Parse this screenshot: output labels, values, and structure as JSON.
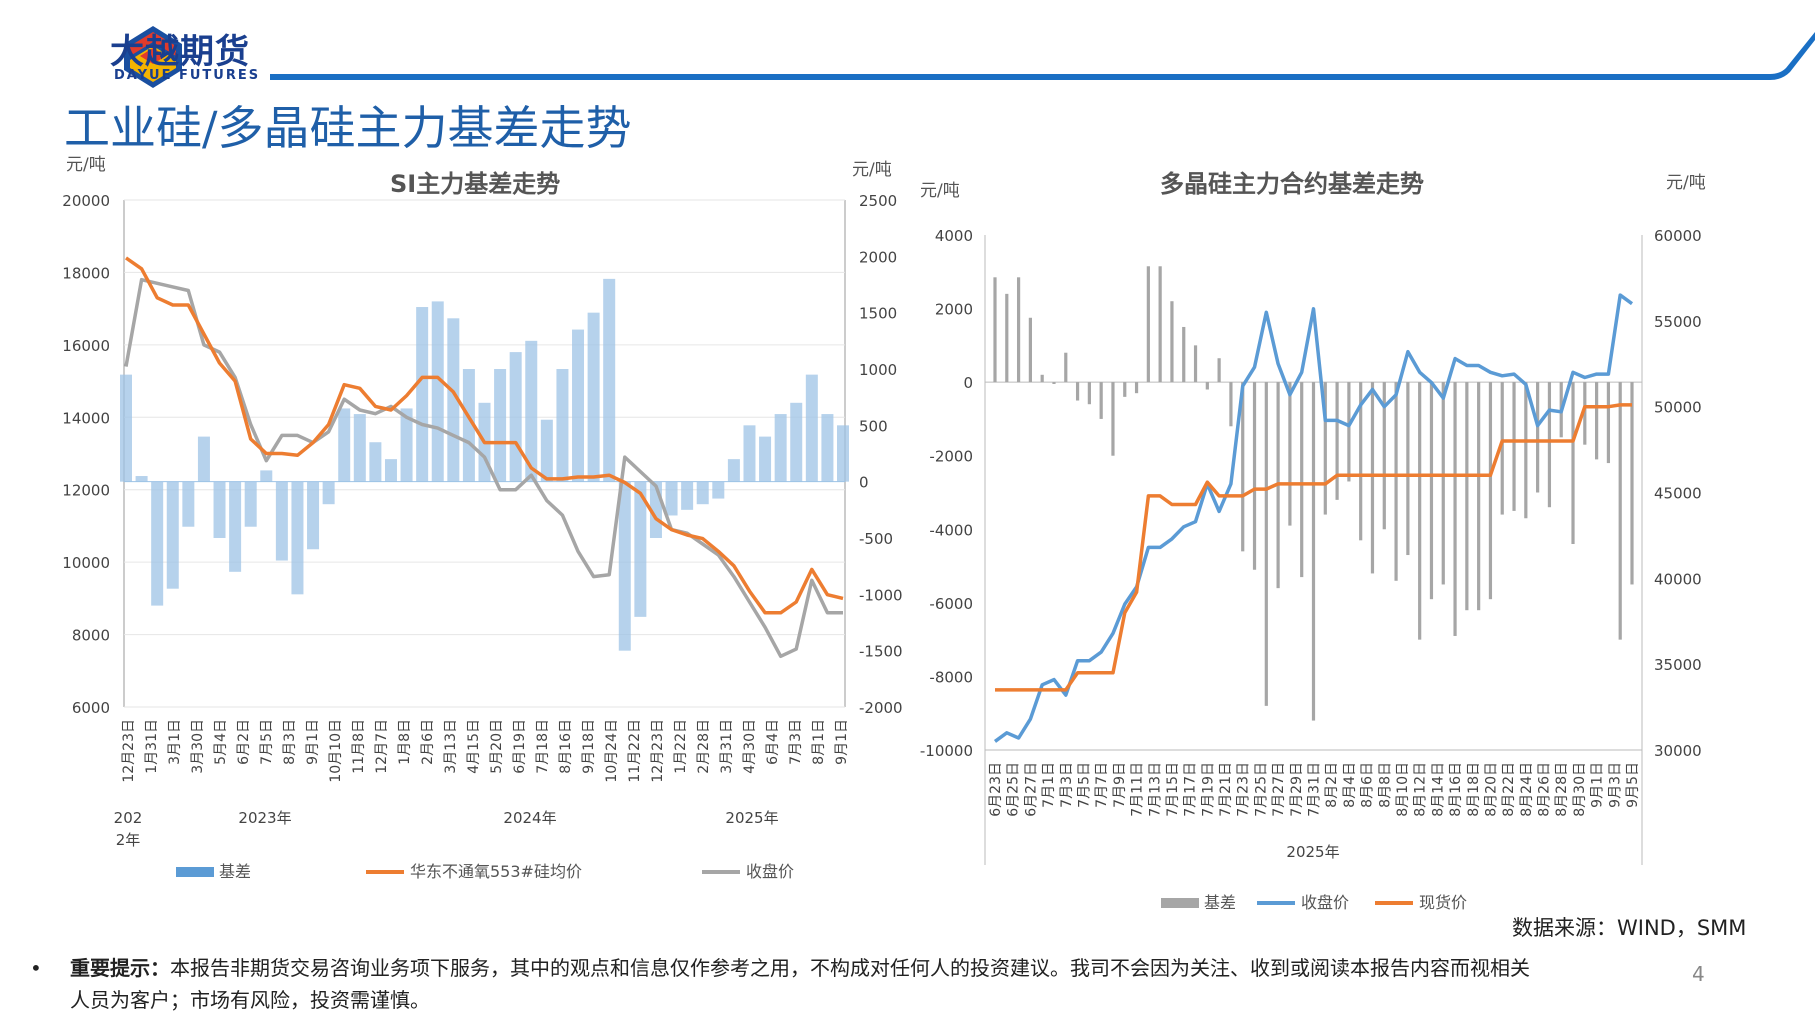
{
  "header": {
    "brand_cn": "大越期货",
    "brand_en": "DAYUE FUTURES",
    "page_title": "工业硅/多晶硅主力基差走势"
  },
  "colors": {
    "brand_blue": "#1a6fc4",
    "title_blue": "#1f5fa8",
    "basis_light_blue": "#9dc3e6",
    "orange": "#ed7d31",
    "gray": "#a6a6a6",
    "blue_line": "#5b9bd5"
  },
  "chart_data": [
    {
      "type": "line",
      "title": "SI主力基差走势",
      "left_unit": "元/吨",
      "right_unit": "元/吨",
      "ylim_left": [
        6000,
        20000
      ],
      "yticks_left": [
        "20000",
        "18000",
        "16000",
        "14000",
        "12000",
        "10000",
        "8000",
        "6000"
      ],
      "ylim_right": [
        -2000,
        2500
      ],
      "yticks_right": [
        "2500",
        "2000",
        "1500",
        "1000",
        "500",
        "0",
        "-500",
        "-1000",
        "-1500",
        "-2000"
      ],
      "x_tick_labels": [
        "12月23日",
        "1月31日",
        "3月1日",
        "3月30日",
        "5月4日",
        "6月2日",
        "7月5日",
        "8月3日",
        "9月1日",
        "10月10日",
        "11月8日",
        "12月7日",
        "1月8日",
        "2月6日",
        "3月13日",
        "4月15日",
        "5月20日",
        "6月19日",
        "7月18日",
        "8月16日",
        "9月18日",
        "10月24日",
        "11月22日",
        "12月23日",
        "1月22日",
        "2月28日",
        "3月31日",
        "4月30日",
        "6月4日",
        "7月3日",
        "8月1日",
        "9月1日"
      ],
      "year_labels": [
        "202\n2年",
        "2023年",
        "2024年",
        "2025年"
      ],
      "legend": [
        "基差",
        "华东不通氧553#硅均价",
        "收盘价"
      ],
      "series": [
        {
          "name": "华东不通氧553#硅均价",
          "axis": "left",
          "values": [
            18400,
            18100,
            17300,
            17100,
            17100,
            16300,
            15500,
            15000,
            13400,
            13000,
            13000,
            12950,
            13300,
            13800,
            14900,
            14800,
            14300,
            14200,
            14600,
            15100,
            15100,
            14700,
            14000,
            13300,
            13300,
            13300,
            12600,
            12300,
            12300,
            12350,
            12350,
            12400,
            12200,
            11900,
            11200,
            10900,
            10750,
            10650,
            10300,
            9900,
            9200,
            8600,
            8600,
            8900,
            9800,
            9100,
            9000
          ]
        },
        {
          "name": "收盘价",
          "axis": "left",
          "values": [
            15400,
            17800,
            17700,
            17600,
            17500,
            16000,
            15800,
            15100,
            13800,
            12800,
            13500,
            13500,
            13300,
            13600,
            14500,
            14200,
            14100,
            14300,
            14000,
            13800,
            13700,
            13500,
            13300,
            12900,
            12000,
            12000,
            12400,
            11700,
            11300,
            10300,
            9600,
            9650,
            12900,
            12500,
            12100,
            10900,
            10800,
            10500,
            10200,
            9600,
            8900,
            8200,
            7400,
            7600,
            9500,
            8600,
            8600
          ]
        },
        {
          "name": "基差",
          "axis": "right",
          "type": "bar",
          "values": [
            950,
            50,
            -1100,
            -950,
            -400,
            400,
            -500,
            -800,
            -400,
            100,
            -700,
            -1000,
            -600,
            -200,
            650,
            600,
            350,
            200,
            650,
            1550,
            1600,
            1450,
            1000,
            700,
            1000,
            1150,
            1250,
            550,
            1000,
            1350,
            1500,
            1800,
            -1500,
            -1200,
            -500,
            -300,
            -250,
            -200,
            -150,
            200,
            500,
            400,
            600,
            700,
            950,
            600,
            500
          ]
        }
      ]
    },
    {
      "type": "line",
      "title": "多晶硅主力合约基差走势",
      "left_unit": "元/吨",
      "right_unit": "元/吨",
      "ylim_left": [
        -10000,
        4000
      ],
      "yticks_left": [
        "4000",
        "2000",
        "0",
        "-2000",
        "-4000",
        "-6000",
        "-8000",
        "-10000"
      ],
      "ylim_right": [
        30000,
        60000
      ],
      "yticks_right": [
        "60000",
        "55000",
        "50000",
        "45000",
        "40000",
        "35000",
        "30000"
      ],
      "x_tick_labels": [
        "6月23日",
        "6月25日",
        "6月27日",
        "7月1日",
        "7月3日",
        "7月5日",
        "7月7日",
        "7月9日",
        "7月11日",
        "7月13日",
        "7月15日",
        "7月17日",
        "7月19日",
        "7月21日",
        "7月23日",
        "7月25日",
        "7月27日",
        "7月29日",
        "7月31日",
        "8月2日",
        "8月4日",
        "8月6日",
        "8月8日",
        "8月10日",
        "8月12日",
        "8月14日",
        "8月16日",
        "8月18日",
        "8月20日",
        "8月22日",
        "8月24日",
        "8月26日",
        "8月28日",
        "8月30日",
        "9月1日",
        "9月3日",
        "9月5日"
      ],
      "year_label": "2025年",
      "legend": [
        "基差",
        "收盘价",
        "现货价"
      ],
      "series": [
        {
          "name": "基差",
          "axis": "left",
          "type": "bar",
          "values": [
            2850,
            2400,
            2850,
            1750,
            200,
            -50,
            800,
            -500,
            -600,
            -1000,
            -2000,
            -400,
            -300,
            3150,
            3150,
            2200,
            1500,
            1000,
            -200,
            650,
            -1200,
            -4600,
            -5100,
            -8800,
            -5600,
            -3900,
            -5300,
            -9200,
            -3600,
            -3200,
            -2700,
            -4300,
            -5200,
            -4000,
            -5400,
            -4700,
            -7000,
            -5900,
            -5500,
            -6900,
            -6200,
            -6200,
            -5900,
            -3600,
            -3500,
            -3700,
            -3000,
            -3400,
            -1500,
            -4400,
            -1700,
            -2100,
            -2200,
            -7000,
            -5500
          ]
        },
        {
          "name": "收盘价",
          "axis": "right",
          "values": [
            30500,
            31000,
            30700,
            31800,
            33800,
            34100,
            33200,
            35200,
            35200,
            35700,
            36800,
            38500,
            39500,
            41800,
            41800,
            42300,
            43000,
            43300,
            45500,
            43900,
            45500,
            51200,
            52300,
            55500,
            52500,
            50700,
            52000,
            55700,
            49200,
            49200,
            48900,
            50100,
            51000,
            50000,
            50700,
            53200,
            52000,
            51400,
            50500,
            52800,
            52400,
            52400,
            52000,
            51800,
            51900,
            51300,
            48900,
            49800,
            49700,
            52000,
            51700,
            51900,
            51900,
            56500,
            56000
          ]
        },
        {
          "name": "现货价",
          "axis": "right",
          "values": [
            33500,
            33500,
            33500,
            33500,
            33500,
            33500,
            33500,
            34500,
            34500,
            34500,
            34500,
            38000,
            39200,
            44800,
            44800,
            44300,
            44300,
            44300,
            45600,
            44800,
            44800,
            44800,
            45200,
            45200,
            45500,
            45500,
            45500,
            45500,
            45500,
            46000,
            46000,
            46000,
            46000,
            46000,
            46000,
            46000,
            46000,
            46000,
            46000,
            46000,
            46000,
            46000,
            46000,
            48000,
            48000,
            48000,
            48000,
            48000,
            48000,
            48000,
            50000,
            50000,
            50000,
            50100,
            50100
          ]
        }
      ]
    }
  ],
  "footer": {
    "source": "数据来源：WIND，SMM",
    "bullet": "•",
    "notice_bold": "重要提示：",
    "notice_text": "本报告非期货交易咨询业务项下服务，其中的观点和信息仅作参考之用，不构成对任何人的投资建议。我司不会因为关注、收到或阅读本报告内容而视相关人员为客户；市场有风险，投资需谨慎。",
    "page_number": "4"
  }
}
